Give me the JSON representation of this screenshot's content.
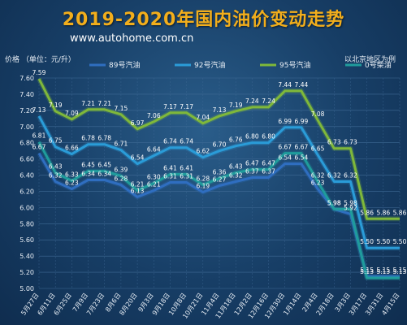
{
  "title": "2019-2020年国内油价变动走势",
  "subtitle": "www.autohome.com.cn",
  "note": "以北京地区为例",
  "colors": {
    "s89": "#2f6ec0",
    "s92": "#2a9cd8",
    "s95": "#7fb83a",
    "s0": "#1f9c9c",
    "grid": "#3f6a95"
  },
  "chart_data": {
    "type": "line",
    "ylabel": "价格 （单位：元/升）",
    "ylim": [
      5.0,
      7.6
    ],
    "yticks": [
      "5.00",
      "5.20",
      "5.40",
      "5.60",
      "5.80",
      "6.00",
      "6.20",
      "6.40",
      "6.60",
      "6.80",
      "7.00",
      "7.20",
      "7.40",
      "7.60"
    ],
    "xticklabels": [
      "5月27日",
      "6月11日",
      "6月25日",
      "7月9日",
      "7月23日",
      "8月6日",
      "8月20日",
      "9月3日",
      "9月18日",
      "10月8日",
      "10月21日",
      "11月4日",
      "11月18日",
      "12月2日",
      "12月16日",
      "12月30日",
      "1月14日",
      "2月4日",
      "2月18日",
      "3月3日",
      "3月17日",
      "3月31日",
      "4月15日"
    ],
    "legend_position": "top",
    "series": [
      {
        "name": "89号汽油",
        "values": [
          6.67,
          6.32,
          6.23,
          6.34,
          6.34,
          6.28,
          6.13,
          6.21,
          6.31,
          6.31,
          6.19,
          6.27,
          6.32,
          6.37,
          6.37,
          6.54,
          6.54,
          6.23,
          5.98,
          5.92,
          5.15,
          5.15,
          5.15
        ],
        "labels": [
          "6.67",
          "6.32",
          "6.23",
          "6.34",
          "6.34",
          "6.28",
          "6.13",
          "6.21",
          "6.31",
          "6.31",
          "6.19",
          "6.27",
          "6.32",
          "6.37",
          "6.37",
          "6.54",
          "6.54",
          "6.23",
          "5.98",
          "5.92",
          "5.15",
          "5.15",
          "5.15"
        ]
      },
      {
        "name": "92号汽油",
        "values": [
          7.13,
          6.75,
          6.66,
          6.78,
          6.78,
          6.71,
          6.54,
          6.64,
          6.74,
          6.74,
          6.62,
          6.7,
          6.76,
          6.8,
          6.8,
          6.99,
          6.99,
          6.65,
          6.32,
          6.32,
          5.5,
          5.5,
          5.5
        ],
        "labels": [
          "7.13",
          "6.75",
          "6.66",
          "6.78",
          "6.78",
          "6.71",
          "6.54",
          "6.64",
          "6.74",
          "6.74",
          "6.62",
          "6.70",
          "6.76",
          "6.80",
          "6.80",
          "6.99",
          "6.99",
          "6.65",
          "6.32",
          "6.32",
          "5.50",
          "5.50",
          "5.50"
        ]
      },
      {
        "name": "95号汽油",
        "values": [
          7.59,
          7.19,
          7.09,
          7.21,
          7.21,
          7.15,
          6.97,
          7.06,
          7.17,
          7.17,
          7.04,
          7.13,
          7.19,
          7.24,
          7.24,
          7.44,
          7.44,
          7.08,
          6.73,
          6.73,
          5.86,
          5.86,
          5.86
        ],
        "labels": [
          "7.59",
          "7.19",
          "7.09",
          "7.21",
          "7.21",
          "7.15",
          "6.97",
          "7.06",
          "7.17",
          "7.17",
          "7.04",
          "7.13",
          "7.19",
          "7.24",
          "7.24",
          "7.44",
          "7.44",
          "7.08",
          "6.73",
          "6.73",
          "5.86",
          "5.86",
          "5.86"
        ]
      },
      {
        "name": "0号柴油",
        "values": [
          6.81,
          6.43,
          6.33,
          6.45,
          6.45,
          6.39,
          6.21,
          6.3,
          6.41,
          6.41,
          6.28,
          6.36,
          6.43,
          6.47,
          6.47,
          6.67,
          6.67,
          6.32,
          5.98,
          5.98,
          5.13,
          5.13,
          5.13
        ],
        "labels": [
          "6.81",
          "6.43",
          "6.33",
          "6.45",
          "6.45",
          "6.39",
          "6.21",
          "6.30",
          "6.41",
          "6.41",
          "6.28",
          "6.36",
          "6.43",
          "6.47",
          "6.47",
          "6.67",
          "6.67",
          "6.32",
          "5.98",
          "5.98",
          "5.13",
          "5.13",
          "5.13"
        ]
      }
    ]
  }
}
